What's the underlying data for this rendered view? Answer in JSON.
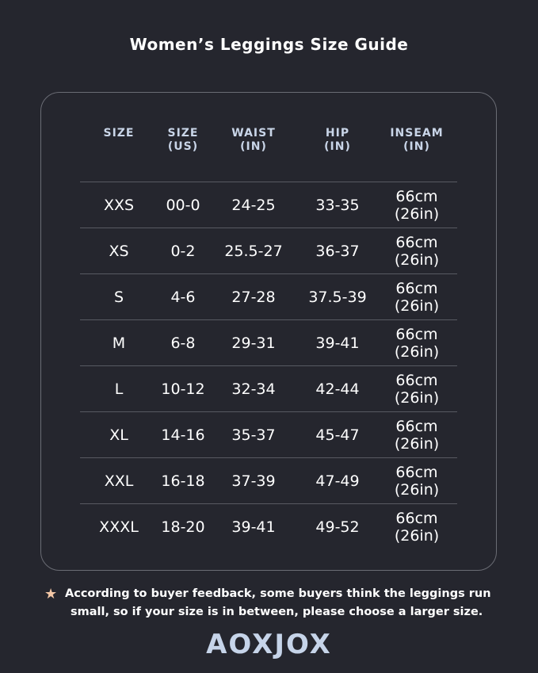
{
  "title": "Women’s Leggings Size Guide",
  "headers": [
    [
      "SIZE",
      ""
    ],
    [
      "SIZE",
      "(US)"
    ],
    [
      "WAIST",
      "(IN)"
    ],
    [
      "HIP",
      "(IN)"
    ],
    [
      "INSEAM",
      "(IN)"
    ]
  ],
  "rows": [
    {
      "size": "XXS",
      "us": "00-0",
      "waist": "24-25",
      "hip": "33-35",
      "inseam1": "66cm",
      "inseam2": "(26in)"
    },
    {
      "size": "XS",
      "us": "0-2",
      "waist": "25.5-27",
      "hip": "36-37",
      "inseam1": "66cm",
      "inseam2": "(26in)"
    },
    {
      "size": "S",
      "us": "4-6",
      "waist": "27-28",
      "hip": "37.5-39",
      "inseam1": "66cm",
      "inseam2": "(26in)"
    },
    {
      "size": "M",
      "us": "6-8",
      "waist": "29-31",
      "hip": "39-41",
      "inseam1": "66cm",
      "inseam2": "(26in)"
    },
    {
      "size": "L",
      "us": "10-12",
      "waist": "32-34",
      "hip": "42-44",
      "inseam1": "66cm",
      "inseam2": "(26in)"
    },
    {
      "size": "XL",
      "us": "14-16",
      "waist": "35-37",
      "hip": "45-47",
      "inseam1": "66cm",
      "inseam2": "(26in)"
    },
    {
      "size": "XXL",
      "us": "16-18",
      "waist": "37-39",
      "hip": "47-49",
      "inseam1": "66cm",
      "inseam2": "(26in)"
    },
    {
      "size": "XXXL",
      "us": "18-20",
      "waist": "39-41",
      "hip": "49-52",
      "inseam1": "66cm",
      "inseam2": "(26in)"
    }
  ],
  "note": {
    "icon": "star-icon",
    "line1": "According to buyer feedback, some buyers think the leggings run",
    "line2": "small, so if your size is in between, please choose a larger size."
  },
  "brand": "AOXJOX",
  "colors": {
    "background": "#25262e",
    "header_text": "#c9d5e8",
    "star": "#f3c7a6",
    "logo": "#c6d4e9"
  }
}
